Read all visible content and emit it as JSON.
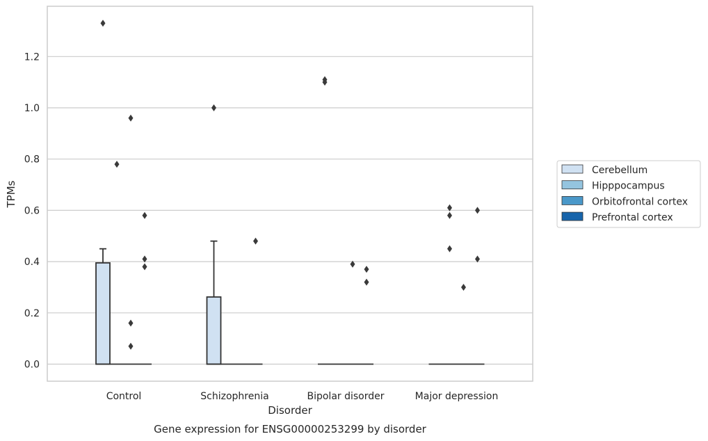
{
  "chart_data": {
    "type": "box",
    "title": "",
    "caption": "Gene expression for ENSG00000253299 by disorder",
    "xlabel": "Disorder",
    "ylabel": "TPMs",
    "ylim": [
      -0.065,
      1.395
    ],
    "yticks": [
      0.0,
      0.2,
      0.4,
      0.6,
      0.8,
      1.0,
      1.2
    ],
    "ytick_labels": [
      "0.0",
      "0.2",
      "0.4",
      "0.6",
      "0.8",
      "1.0",
      "1.2"
    ],
    "grid": "horizontal",
    "legend_position": "right-center",
    "categories": [
      "Control",
      "Schizophrenia",
      "Bipolar disorder",
      "Major depression"
    ],
    "series": [
      {
        "name": "Cerebellum",
        "color": "#d0e1f2",
        "boxes": [
          {
            "q1": 0.0,
            "median": 0.0,
            "q3": 0.395,
            "whisker_low": 0.0,
            "whisker_high": 0.45,
            "outliers": [
              1.33
            ]
          },
          {
            "q1": 0.0,
            "median": 0.0,
            "q3": 0.262,
            "whisker_low": 0.0,
            "whisker_high": 0.48,
            "outliers": [
              1.0
            ]
          },
          {
            "q1": 0.0,
            "median": 0.0,
            "q3": 0.0,
            "whisker_low": 0.0,
            "whisker_high": 0.0,
            "outliers": [
              1.1,
              1.11
            ]
          },
          {
            "q1": 0.0,
            "median": 0.0,
            "q3": 0.0,
            "whisker_low": 0.0,
            "whisker_high": 0.0,
            "outliers": []
          }
        ]
      },
      {
        "name": "Hipppocampus",
        "color": "#94c4df",
        "boxes": [
          {
            "q1": 0.0,
            "median": 0.0,
            "q3": 0.0,
            "whisker_low": 0.0,
            "whisker_high": 0.0,
            "outliers": [
              0.78
            ]
          },
          {
            "q1": 0.0,
            "median": 0.0,
            "q3": 0.0,
            "whisker_low": 0.0,
            "whisker_high": 0.0,
            "outliers": []
          },
          {
            "q1": 0.0,
            "median": 0.0,
            "q3": 0.0,
            "whisker_low": 0.0,
            "whisker_high": 0.0,
            "outliers": []
          },
          {
            "q1": 0.0,
            "median": 0.0,
            "q3": 0.0,
            "whisker_low": 0.0,
            "whisker_high": 0.0,
            "outliers": [
              0.45,
              0.58,
              0.61
            ]
          }
        ]
      },
      {
        "name": "Orbitofrontal cortex",
        "color": "#4a98c9",
        "boxes": [
          {
            "q1": 0.0,
            "median": 0.0,
            "q3": 0.0,
            "whisker_low": 0.0,
            "whisker_high": 0.0,
            "outliers": [
              0.07,
              0.16,
              0.96
            ]
          },
          {
            "q1": 0.0,
            "median": 0.0,
            "q3": 0.0,
            "whisker_low": 0.0,
            "whisker_high": 0.0,
            "outliers": []
          },
          {
            "q1": 0.0,
            "median": 0.0,
            "q3": 0.0,
            "whisker_low": 0.0,
            "whisker_high": 0.0,
            "outliers": [
              0.39
            ]
          },
          {
            "q1": 0.0,
            "median": 0.0,
            "q3": 0.0,
            "whisker_low": 0.0,
            "whisker_high": 0.0,
            "outliers": [
              0.3
            ]
          }
        ]
      },
      {
        "name": "Prefrontal cortex",
        "color": "#1764ab",
        "boxes": [
          {
            "q1": 0.0,
            "median": 0.0,
            "q3": 0.0,
            "whisker_low": 0.0,
            "whisker_high": 0.0,
            "outliers": [
              0.38,
              0.41,
              0.58
            ]
          },
          {
            "q1": 0.0,
            "median": 0.0,
            "q3": 0.0,
            "whisker_low": 0.0,
            "whisker_high": 0.0,
            "outliers": [
              0.48
            ]
          },
          {
            "q1": 0.0,
            "median": 0.0,
            "q3": 0.0,
            "whisker_low": 0.0,
            "whisker_high": 0.0,
            "outliers": [
              0.32,
              0.37
            ]
          },
          {
            "q1": 0.0,
            "median": 0.0,
            "q3": 0.0,
            "whisker_low": 0.0,
            "whisker_high": 0.0,
            "outliers": [
              0.41,
              0.6
            ]
          }
        ]
      }
    ]
  }
}
